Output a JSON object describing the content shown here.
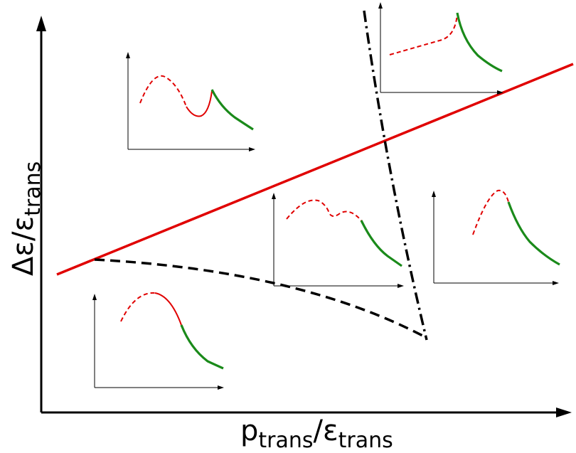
{
  "axes": {
    "x_label": {
      "main": "p",
      "sub": "trans",
      "slash": "/",
      "main2": "ε",
      "sub2": "trans"
    },
    "y_label": {
      "main": "Δε",
      "slash": "/",
      "main2": "ε",
      "sub2": "trans"
    }
  },
  "colors": {
    "unstable_branch": "#e00000",
    "stable_branch": "#1a8a1a",
    "boundary_line": "#e00000",
    "axes": "#000000"
  },
  "boundaries": [
    {
      "name": "red-solid-boundary",
      "style": "solid",
      "color": "#e00000"
    },
    {
      "name": "dashed-boundary",
      "style": "dashed",
      "color": "#000000"
    },
    {
      "name": "dash-dot-boundary",
      "style": "dash-dot",
      "color": "#000000"
    }
  ],
  "insets": [
    {
      "name": "inset-upper-left",
      "curve": "maximum then minimum with discontinuity"
    },
    {
      "name": "inset-upper-right",
      "curve": "monotonic rise then fall"
    },
    {
      "name": "inset-center",
      "curve": "double maximum"
    },
    {
      "name": "inset-right",
      "curve": "single maximum"
    },
    {
      "name": "inset-lower-left",
      "curve": "single maximum"
    }
  ]
}
